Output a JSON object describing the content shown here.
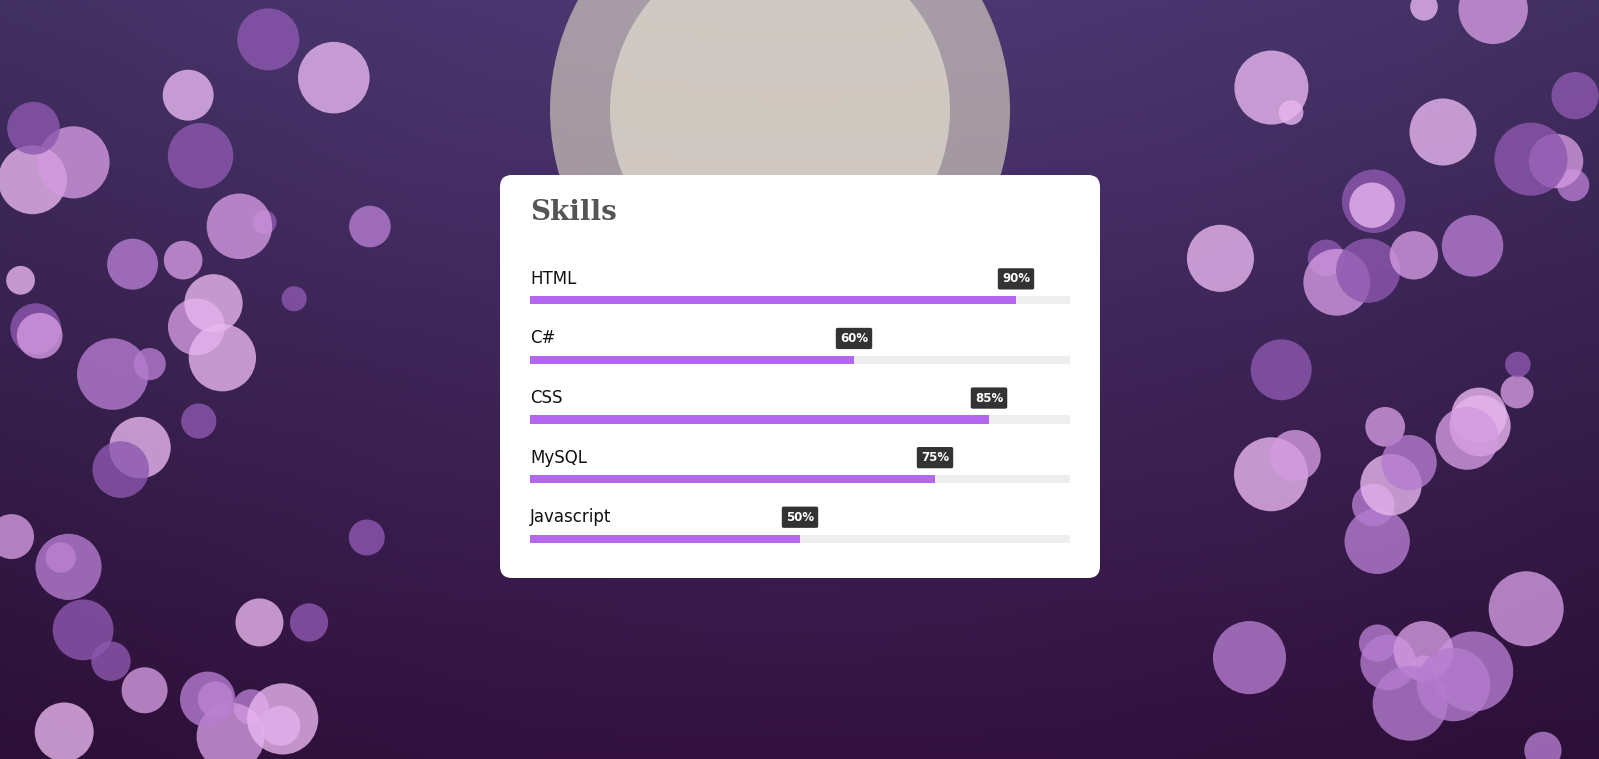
{
  "chart_data": {
    "type": "bar",
    "orientation": "horizontal",
    "title": "Skills",
    "categories": [
      "HTML",
      "C#",
      "CSS",
      "MySQL",
      "Javascript"
    ],
    "values": [
      90,
      60,
      85,
      75,
      50
    ],
    "value_labels": [
      "90%",
      "60%",
      "85%",
      "75%",
      "50%"
    ],
    "data_labels": true,
    "xlim": [
      0,
      100
    ],
    "tick_labels": false,
    "color": "#b366ee"
  }
}
